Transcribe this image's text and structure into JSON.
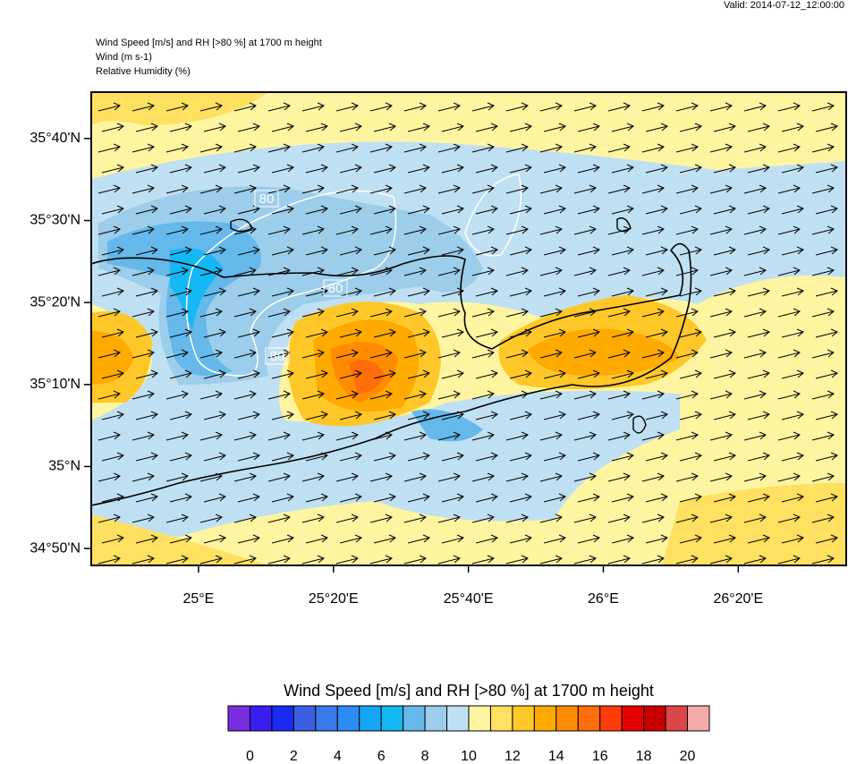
{
  "valid": "Valid: 2014-07-12_12:00:00",
  "header": [
    "Wind Speed [m/s] and RH [>80 %] at 1700 m height",
    "Wind   (m s-1)",
    "Relative Humidity   (%)"
  ],
  "map": {
    "xlim": [
      24.735,
      26.6
    ],
    "ylim": [
      34.799,
      35.761
    ],
    "yticks": [
      {
        "value": 35.6667,
        "label": "35°40'N"
      },
      {
        "value": 35.5,
        "label": "35°30'N"
      },
      {
        "value": 35.3333,
        "label": "35°20'N"
      },
      {
        "value": 35.1667,
        "label": "35°10'N"
      },
      {
        "value": 35,
        "label": "35°N"
      },
      {
        "value": 34.8333,
        "label": "34°50'N"
      }
    ],
    "xticks": [
      {
        "value": 25,
        "label": "25°E"
      },
      {
        "value": 25.3333,
        "label": "25°20'E"
      },
      {
        "value": 25.6667,
        "label": "25°40'E"
      },
      {
        "value": 26,
        "label": "26°E"
      },
      {
        "value": 26.3333,
        "label": "26°20'E"
      }
    ],
    "contour_labels": [
      80,
      80,
      80
    ]
  },
  "colorbar": {
    "title": "Wind Speed [m/s] and RH [>80 %] at 1700 m height",
    "bins": [
      -1,
      0,
      1,
      2,
      3,
      4,
      5,
      6,
      7,
      8,
      9,
      10,
      11,
      12,
      13,
      14,
      15,
      16,
      17,
      18,
      19,
      20,
      21
    ],
    "colors": [
      "#7b2de0",
      "#3a1ef0",
      "#1a2af0",
      "#3860e0",
      "#3a7aeb",
      "#2a8cf5",
      "#14a6f5",
      "#14b8f5",
      "#64b8ea",
      "#9ccdea",
      "#bfe0f2",
      "#fff5a0",
      "#ffe060",
      "#ffc828",
      "#ffaa00",
      "#ff8c00",
      "#ff6e0a",
      "#ff3c0a",
      "#e60000",
      "#c80000",
      "#dc4646",
      "#f5aaaa"
    ],
    "ticks": [
      0,
      2,
      4,
      6,
      8,
      10,
      12,
      14,
      16,
      18,
      20
    ]
  }
}
